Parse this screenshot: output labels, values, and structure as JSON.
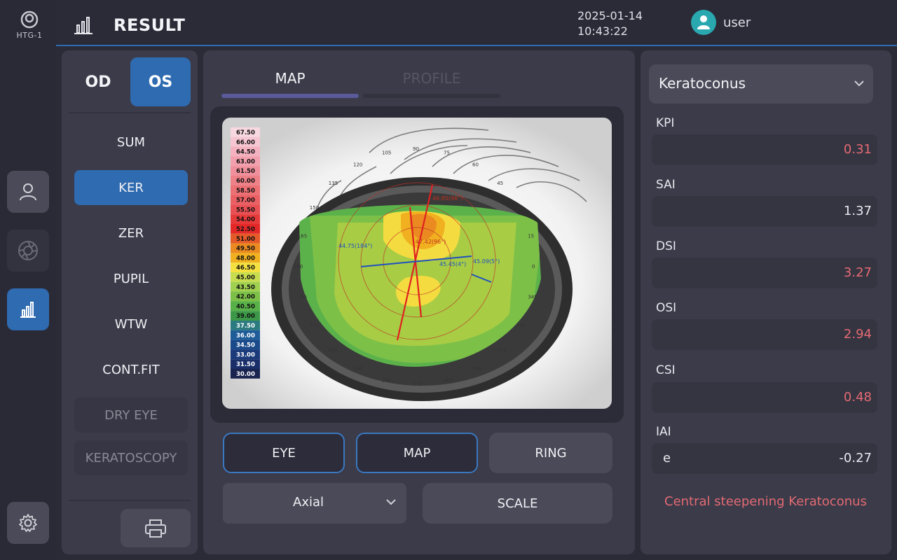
{
  "app": {
    "logo_label": "HTG-1"
  },
  "header": {
    "title": "RESULT",
    "date": "2025-01-14",
    "time": "10:43:22",
    "user": "user"
  },
  "eye_selector": {
    "od": "OD",
    "os": "OS",
    "selected": "OS"
  },
  "menu": {
    "items": [
      {
        "label": "SUM"
      },
      {
        "label": "KER"
      },
      {
        "label": "ZER"
      },
      {
        "label": "PUPIL"
      },
      {
        "label": "WTW"
      },
      {
        "label": "CONT.FIT"
      },
      {
        "label": "DRY EYE"
      },
      {
        "label": "KERATOSCOPY"
      }
    ],
    "active": "KER"
  },
  "tabs": [
    {
      "label": "MAP"
    },
    {
      "label": "PROFILE"
    }
  ],
  "map": {
    "scale": [
      "67.50",
      "66.00",
      "64.50",
      "63.00",
      "61.50",
      "60.00",
      "58.50",
      "57.00",
      "55.50",
      "54.00",
      "52.50",
      "51.00",
      "49.50",
      "48.00",
      "46.50",
      "45.00",
      "43.50",
      "42.00",
      "40.50",
      "39.00",
      "37.50",
      "36.00",
      "34.50",
      "33.00",
      "31.50",
      "30.00"
    ],
    "scale_colors": [
      "#f8d8e0",
      "#f6c6d2",
      "#f4b2c0",
      "#f2a0ae",
      "#f0909c",
      "#ee8088",
      "#ec7074",
      "#ea6064",
      "#e85054",
      "#e63a3a",
      "#e42828",
      "#e45a28",
      "#ea8a20",
      "#f0b020",
      "#f4e040",
      "#c8dc50",
      "#a0d050",
      "#7cc048",
      "#58b048",
      "#3c9848",
      "#2a7a80",
      "#1e5c98",
      "#1a4a8a",
      "#1a3a7a",
      "#1a2e6a",
      "#1a2450"
    ],
    "angles": [
      "90",
      "105",
      "120",
      "135",
      "150",
      "165",
      "180",
      "195",
      "210",
      "225",
      "240",
      "255",
      "270",
      "285",
      "300",
      "315",
      "330",
      "345",
      "0",
      "15",
      "30",
      "45",
      "60",
      "75"
    ],
    "readings": {
      "r1": "47.42(96°)",
      "r2": "44.75(184°)",
      "r3": "45.45(4°)",
      "r4": "45.09(5°)",
      "r5": "46.85(98°)"
    }
  },
  "controls": {
    "eye": "EYE",
    "map": "MAP",
    "ring": "RING",
    "map_type": "Axial",
    "scale": "SCALE"
  },
  "indices": {
    "dropdown": "Keratoconus",
    "items": [
      {
        "label": "KPI",
        "value": "0.31",
        "prefix": ""
      },
      {
        "label": "SAI",
        "value": "1.37",
        "prefix": ""
      },
      {
        "label": "DSI",
        "value": "3.27",
        "prefix": ""
      },
      {
        "label": "OSI",
        "value": "2.94",
        "prefix": ""
      },
      {
        "label": "CSI",
        "value": "0.48",
        "prefix": ""
      },
      {
        "label": "IAI",
        "value": "-0.27",
        "prefix": "e"
      }
    ],
    "diagnosis": "Central steepening Keratoconus"
  },
  "colors": {
    "accent": "#2f6bb0",
    "alert": "#e56a72",
    "teal": "#2aa8b0"
  }
}
